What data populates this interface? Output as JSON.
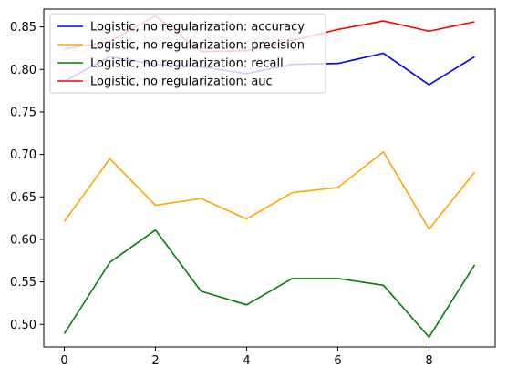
{
  "chart_data": {
    "type": "line",
    "x": [
      0,
      1,
      2,
      3,
      4,
      5,
      6,
      7,
      8,
      9
    ],
    "xlim": [
      -0.45,
      9.45
    ],
    "ylim": [
      0.4735,
      0.871
    ],
    "xticks": [
      0,
      2,
      4,
      6,
      8
    ],
    "yticks": [
      0.5,
      0.55,
      0.6,
      0.65,
      0.7,
      0.75,
      0.8,
      0.85
    ],
    "xtick_labels": [
      "0",
      "2",
      "4",
      "6",
      "8"
    ],
    "ytick_labels": [
      "0.50",
      "0.55",
      "0.60",
      "0.65",
      "0.70",
      "0.75",
      "0.80",
      "0.85"
    ],
    "grid": false,
    "legend_position": "upper-left",
    "title": "",
    "xlabel": "",
    "ylabel": "",
    "series": [
      {
        "name": "Logistic, no regularization: accuracy",
        "color": "#0000ff",
        "values": [
          0.786,
          0.815,
          0.806,
          0.803,
          0.795,
          0.806,
          0.807,
          0.819,
          0.782,
          0.815
        ]
      },
      {
        "name": "Logistic, no regularization: precision",
        "color": "#ffa500",
        "values": [
          0.621,
          0.695,
          0.64,
          0.648,
          0.624,
          0.655,
          0.661,
          0.703,
          0.612,
          0.679
        ]
      },
      {
        "name": "Logistic, no regularization: recall",
        "color": "#008000",
        "values": [
          0.489,
          0.573,
          0.611,
          0.539,
          0.523,
          0.554,
          0.554,
          0.546,
          0.485,
          0.57
        ]
      },
      {
        "name": "Logistic, no regularization: auc",
        "color": "#ff0000",
        "values": [
          0.824,
          0.833,
          0.863,
          0.821,
          0.822,
          0.834,
          0.847,
          0.857,
          0.845,
          0.856
        ]
      }
    ]
  }
}
